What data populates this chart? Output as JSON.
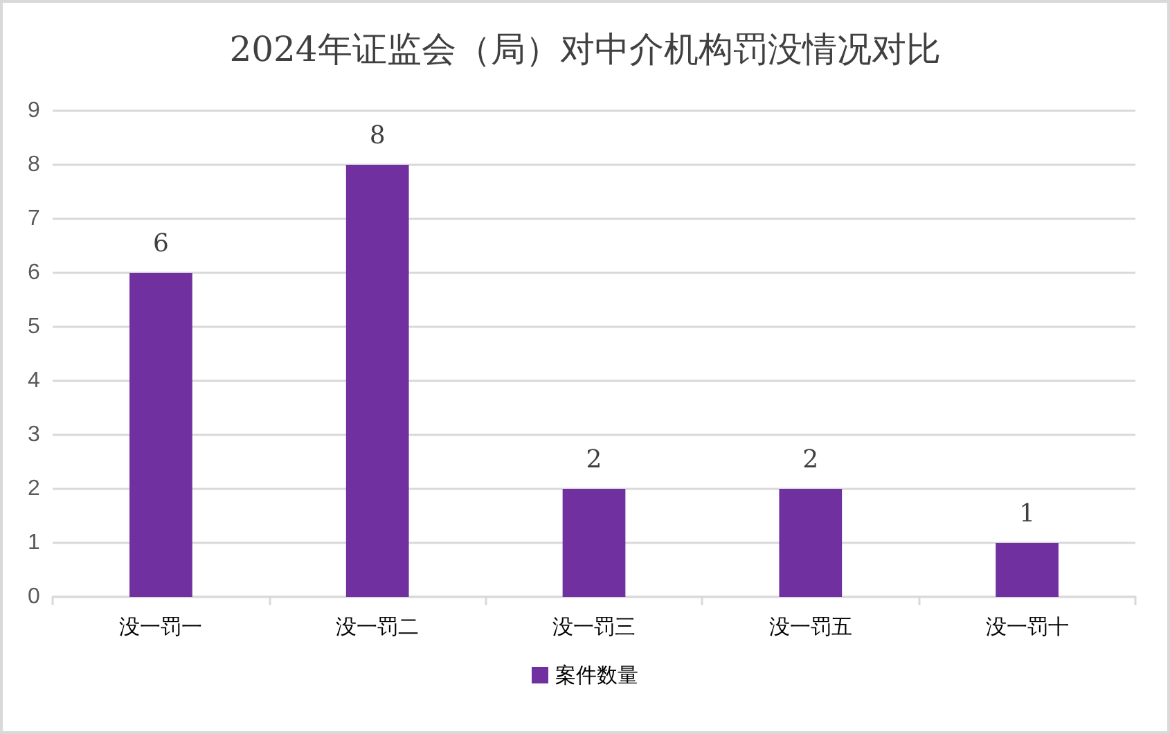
{
  "chart_data": {
    "type": "bar",
    "title": "2024年证监会（局）对中介机构罚没情况对比",
    "categories": [
      "没一罚一",
      "没一罚二",
      "没一罚三",
      "没一罚五",
      "没一罚十"
    ],
    "series": [
      {
        "name": "案件数量",
        "color": "#7030a0",
        "values": [
          6,
          8,
          2,
          2,
          1
        ]
      }
    ],
    "ylim": [
      0,
      9
    ],
    "yticks": [
      0,
      1,
      2,
      3,
      4,
      5,
      6,
      7,
      8,
      9
    ],
    "grid": "y",
    "legend": "bottom",
    "data_labels": true
  }
}
